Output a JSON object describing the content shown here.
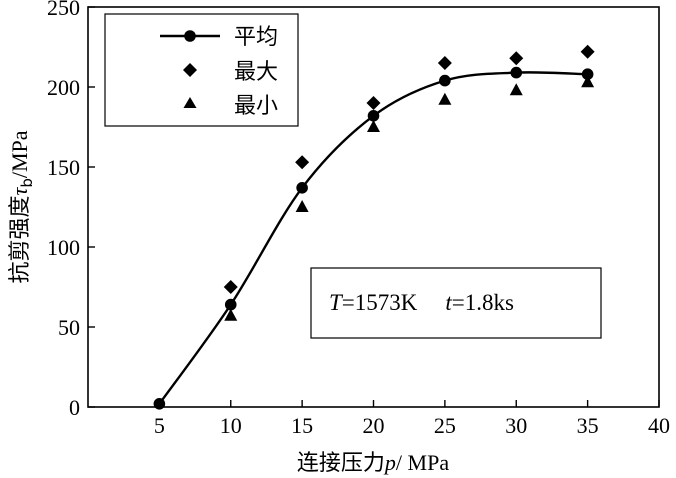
{
  "chart_data": {
    "type": "line",
    "xlabel": {
      "prefix": "连接压力",
      "symbol": "p",
      "unit": "/ MPa"
    },
    "ylabel": {
      "prefix": "抗剪强度",
      "symbol": "τ",
      "subscript": "b",
      "unit": "/MPa"
    },
    "xlim": [
      0,
      40
    ],
    "ylim": [
      0,
      250
    ],
    "x_ticks": [
      5,
      10,
      15,
      20,
      25,
      30,
      35,
      40
    ],
    "y_ticks": [
      0,
      50,
      100,
      150,
      200,
      250
    ],
    "x_tick_labels": [
      "5",
      "10",
      "15",
      "20",
      "25",
      "30",
      "35",
      "40"
    ],
    "y_tick_labels": [
      "0",
      "50",
      "100",
      "150",
      "200",
      "250"
    ],
    "legend_position": "top-left",
    "series": [
      {
        "name": "平均",
        "marker": "circle",
        "line": true,
        "x": [
          5,
          10,
          15,
          20,
          25,
          30,
          35
        ],
        "values": [
          2,
          64,
          137,
          182,
          204,
          209,
          208
        ]
      },
      {
        "name": "最大",
        "marker": "diamond",
        "line": false,
        "x": [
          10,
          15,
          20,
          25,
          30,
          35
        ],
        "values": [
          75,
          153,
          190,
          215,
          218,
          222
        ]
      },
      {
        "name": "最小",
        "marker": "triangle",
        "line": false,
        "x": [
          10,
          15,
          20,
          25,
          30,
          35
        ],
        "values": [
          57,
          125,
          175,
          192,
          198,
          203
        ]
      }
    ],
    "annotation": {
      "T_symbol": "T",
      "T_value": "=1573K",
      "t_symbol": "t",
      "t_value": "=1.8ks"
    }
  }
}
